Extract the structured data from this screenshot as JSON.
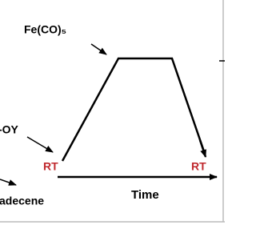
{
  "labels": {
    "precursor": "Fe(CO)₅",
    "surfactant": "-OY",
    "rt_start": "RT",
    "rt_end": "RT",
    "time_axis": "Time",
    "solvent": "adecene"
  }
}
